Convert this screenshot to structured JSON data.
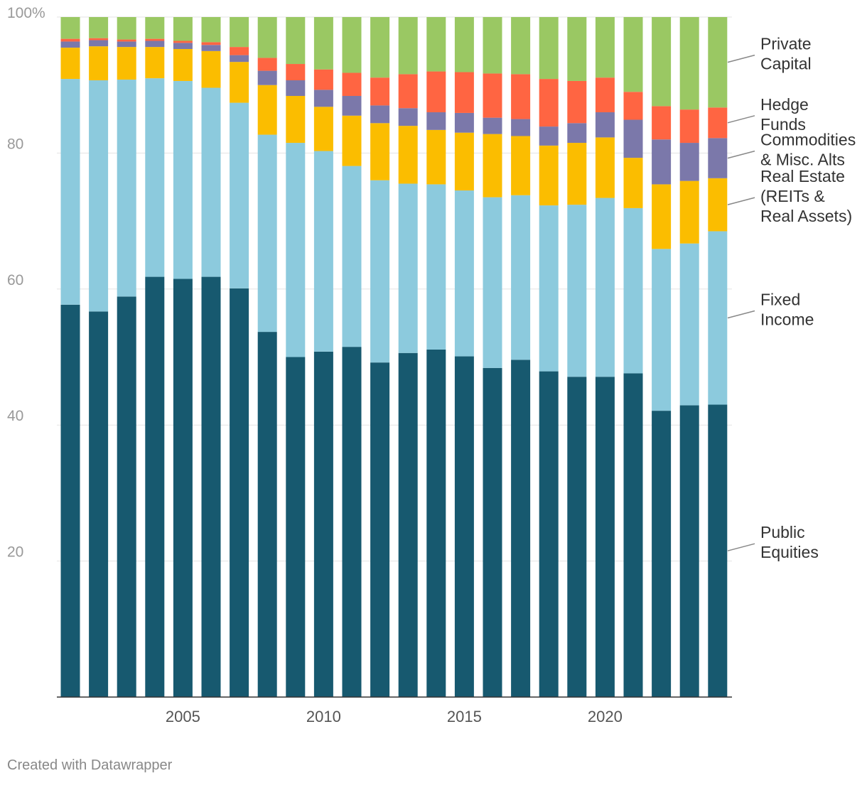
{
  "chart_data": {
    "type": "bar",
    "stacked": true,
    "x": [
      2001,
      2002,
      2003,
      2004,
      2005,
      2006,
      2007,
      2008,
      2009,
      2010,
      2011,
      2012,
      2013,
      2014,
      2015,
      2016,
      2017,
      2018,
      2019,
      2020,
      2021,
      2022,
      2023,
      2024
    ],
    "x_tick_labels": [
      {
        "value": 2005,
        "label": "2005"
      },
      {
        "value": 2010,
        "label": "2010"
      },
      {
        "value": 2015,
        "label": "2015"
      },
      {
        "value": 2020,
        "label": "2020"
      }
    ],
    "ylim": [
      0,
      100
    ],
    "y_ticks": [
      {
        "value": 20,
        "label": "20"
      },
      {
        "value": 40,
        "label": "40"
      },
      {
        "value": 60,
        "label": "60"
      },
      {
        "value": 80,
        "label": "80"
      },
      {
        "value": 100,
        "label": "100%"
      }
    ],
    "grid": true,
    "legend_placement": "right",
    "series": [
      {
        "name": "Public\nEquities",
        "color": "#17596f",
        "values": [
          57.7,
          56.7,
          58.9,
          61.8,
          61.5,
          61.8,
          60.1,
          53.7,
          50.0,
          50.8,
          51.5,
          49.2,
          50.6,
          51.1,
          50.1,
          48.4,
          49.6,
          47.9,
          47.1,
          47.1,
          47.6,
          42.1,
          42.9,
          43.0
        ]
      },
      {
        "name": "Fixed\nIncome",
        "color": "#8ccadd",
        "values": [
          33.2,
          34.0,
          31.9,
          29.2,
          29.1,
          27.8,
          27.3,
          29.0,
          31.5,
          29.5,
          26.6,
          26.8,
          24.9,
          24.3,
          24.4,
          25.1,
          24.2,
          24.4,
          25.3,
          26.3,
          24.3,
          23.8,
          23.8,
          25.5
        ]
      },
      {
        "name": "Real Estate\n(REITs &\nReal Assets)",
        "color": "#fbbd00",
        "values": [
          4.6,
          5.0,
          4.8,
          4.6,
          4.7,
          5.4,
          6.0,
          7.3,
          6.9,
          6.5,
          7.4,
          8.4,
          8.5,
          8.0,
          8.5,
          9.3,
          8.7,
          8.8,
          9.1,
          8.9,
          7.4,
          9.5,
          9.2,
          7.8
        ]
      },
      {
        "name": "Commodities\n& Misc. Alts",
        "color": "#7b78aa",
        "values": [
          0.9,
          0.9,
          0.8,
          0.9,
          0.9,
          0.9,
          1.0,
          2.1,
          2.3,
          2.5,
          2.9,
          2.6,
          2.6,
          2.6,
          2.9,
          2.4,
          2.5,
          2.8,
          2.9,
          3.7,
          5.6,
          6.6,
          5.6,
          5.9
        ]
      },
      {
        "name": "Hedge\nFunds",
        "color": "#ff6542",
        "values": [
          0.4,
          0.3,
          0.3,
          0.3,
          0.3,
          0.4,
          1.2,
          1.9,
          2.4,
          3.0,
          3.4,
          4.1,
          5.0,
          6.0,
          6.0,
          6.5,
          6.6,
          7.0,
          6.2,
          5.1,
          4.1,
          4.9,
          4.9,
          4.5
        ]
      },
      {
        "name": "Private\nCapital",
        "color": "#9ac863",
        "values": [
          3.2,
          3.1,
          3.3,
          3.2,
          3.5,
          3.7,
          4.4,
          6.0,
          6.9,
          7.7,
          8.2,
          8.9,
          8.4,
          8.0,
          8.1,
          8.3,
          8.4,
          9.1,
          9.4,
          8.9,
          11.0,
          13.1,
          13.6,
          13.3
        ]
      }
    ]
  },
  "footer": "Created with Datawrapper"
}
